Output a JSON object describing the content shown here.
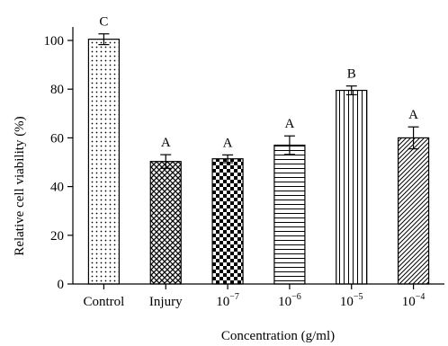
{
  "chart_data": {
    "type": "bar",
    "xlabel": "Concentration (g/ml)",
    "ylabel": "Relative cell viability (%)",
    "ylim": [
      0,
      110
    ],
    "yticks": [
      0,
      20,
      40,
      60,
      80,
      100
    ],
    "grid": false,
    "legend": "none",
    "categories": [
      {
        "label": "Control"
      },
      {
        "label": "Injury"
      },
      {
        "label": "10",
        "exp": "−7"
      },
      {
        "label": "10",
        "exp": "−6"
      },
      {
        "label": "10",
        "exp": "−5"
      },
      {
        "label": "10",
        "exp": "−4"
      }
    ],
    "values": [
      100.5,
      50.3,
      51.4,
      57.0,
      79.5,
      60.0
    ],
    "errors": [
      2.2,
      2.8,
      1.6,
      3.8,
      1.8,
      4.5
    ],
    "significance": [
      "C",
      "A",
      "A",
      "A",
      "B",
      "A"
    ],
    "patterns": [
      "dots",
      "crosshatch",
      "checker",
      "horizontal",
      "vertical",
      "diagonal"
    ]
  }
}
